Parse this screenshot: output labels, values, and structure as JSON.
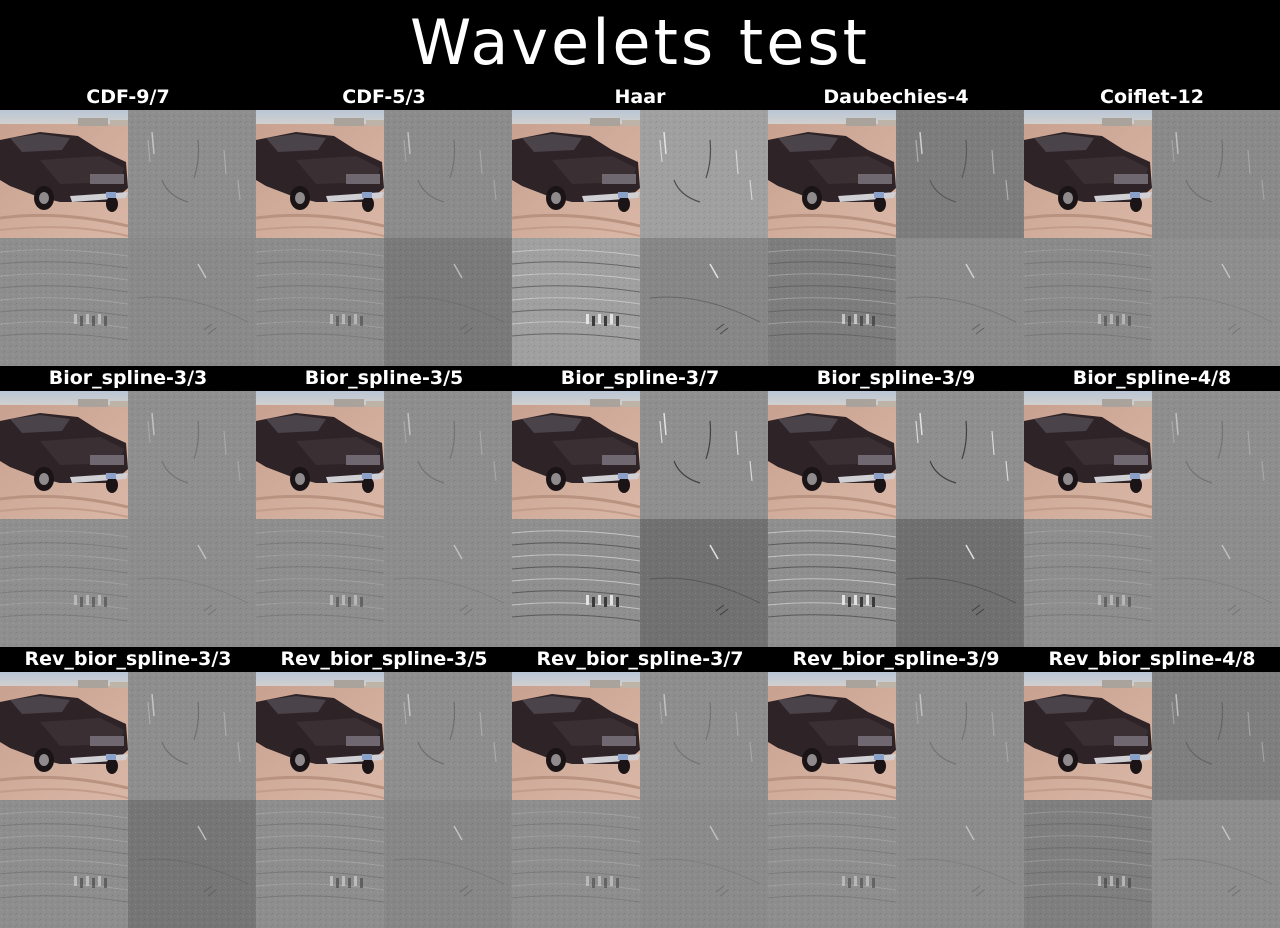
{
  "title": "Wavelets test",
  "wavelets": [
    {
      "name": "CDF-9/7",
      "detail_tone": "#8e8e8e",
      "diag_tone": "#8a8a8a",
      "edge_strength": 0.35
    },
    {
      "name": "CDF-5/3",
      "detail_tone": "#8c8c8c",
      "diag_tone": "#7a7a7a",
      "edge_strength": 0.3
    },
    {
      "name": "Haar",
      "detail_tone": "#a0a0a0",
      "diag_tone": "#878787",
      "edge_strength": 0.8
    },
    {
      "name": "Daubechies-4",
      "detail_tone": "#7d7d7d",
      "diag_tone": "#8b8b8b",
      "edge_strength": 0.5
    },
    {
      "name": "Coiflet-12",
      "detail_tone": "#8a8a8a",
      "diag_tone": "#8e8e8e",
      "edge_strength": 0.3
    },
    {
      "name": "Bior_spline-3/3",
      "detail_tone": "#8f8f8f",
      "diag_tone": "#8d8d8d",
      "edge_strength": 0.3
    },
    {
      "name": "Bior_spline-3/5",
      "detail_tone": "#8e8e8e",
      "diag_tone": "#8d8d8d",
      "edge_strength": 0.3
    },
    {
      "name": "Bior_spline-3/7",
      "detail_tone": "#8f8f8f",
      "diag_tone": "#717171",
      "edge_strength": 0.9
    },
    {
      "name": "Bior_spline-3/9",
      "detail_tone": "#8f8f8f",
      "diag_tone": "#707070",
      "edge_strength": 0.9
    },
    {
      "name": "Bior_spline-4/8",
      "detail_tone": "#8e8e8e",
      "diag_tone": "#8d8d8d",
      "edge_strength": 0.3
    },
    {
      "name": "Rev_bior_spline-3/3",
      "detail_tone": "#8e8e8e",
      "diag_tone": "#767676",
      "edge_strength": 0.35
    },
    {
      "name": "Rev_bior_spline-3/5",
      "detail_tone": "#8e8e8e",
      "diag_tone": "#878787",
      "edge_strength": 0.35
    },
    {
      "name": "Rev_bior_spline-3/7",
      "detail_tone": "#8e8e8e",
      "diag_tone": "#8b8b8b",
      "edge_strength": 0.3
    },
    {
      "name": "Rev_bior_spline-3/9",
      "detail_tone": "#8e8e8e",
      "diag_tone": "#8c8c8c",
      "edge_strength": 0.3
    },
    {
      "name": "Rev_bior_spline-4/8",
      "detail_tone": "#7f7f7f",
      "diag_tone": "#8d8d8d",
      "edge_strength": 0.35
    }
  ]
}
